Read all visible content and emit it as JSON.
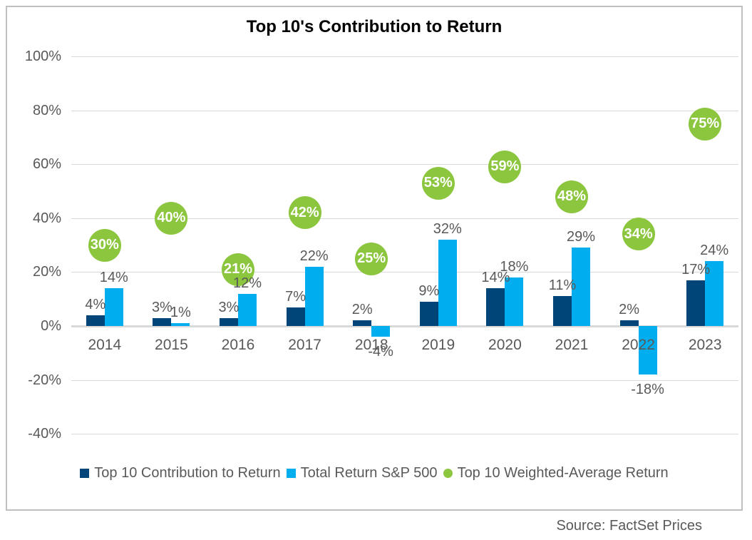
{
  "chart_data": {
    "type": "bar",
    "title": "Top 10's Contribution to Return",
    "categories": [
      "2014",
      "2015",
      "2016",
      "2017",
      "2018",
      "2019",
      "2020",
      "2021",
      "2022",
      "2023"
    ],
    "series": [
      {
        "name": "Top 10 Contribution to Return",
        "type": "bar",
        "color": "#004577",
        "values": [
          4,
          3,
          3,
          7,
          2,
          9,
          14,
          11,
          2,
          17
        ]
      },
      {
        "name": "Total Return S&P 500",
        "type": "bar",
        "color": "#00AEEF",
        "values": [
          14,
          1,
          12,
          22,
          -4,
          32,
          18,
          29,
          -18,
          24
        ]
      },
      {
        "name": "Top 10 Weighted-Average Return",
        "type": "circle-marker",
        "color": "#8CC63F",
        "values": [
          30,
          40,
          21,
          42,
          25,
          53,
          59,
          48,
          34,
          75
        ]
      }
    ],
    "y_axis": {
      "min": -40,
      "max": 100,
      "step": 20,
      "unit": "%",
      "tick_labels": [
        "100%",
        "80%",
        "60%",
        "40%",
        "20%",
        "0%",
        "-20%",
        "-40%"
      ]
    },
    "grid": true,
    "legend_position": "bottom",
    "data_label_format": "value + %"
  },
  "source": "Source: FactSet Prices",
  "colors": {
    "dark_blue": "#004577",
    "light_blue": "#00AEEF",
    "green": "#8CC63F",
    "label_gray": "#595959",
    "gridline": "#d9d9d9",
    "border": "#c0c0c0"
  }
}
